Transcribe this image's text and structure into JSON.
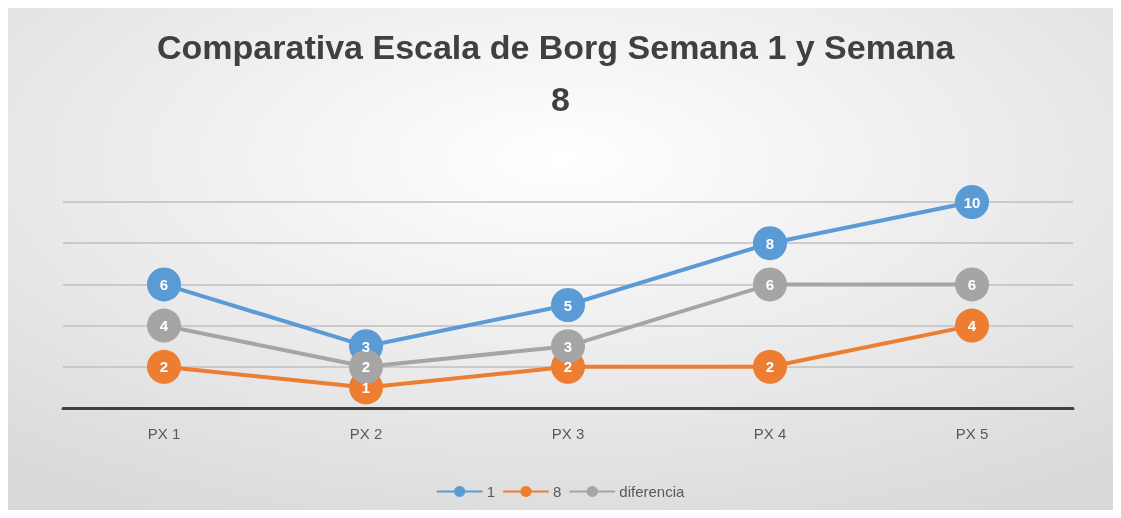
{
  "chart_data": {
    "type": "line",
    "title": "Comparativa Escala de Borg Semana 1 y Semana 8",
    "categories": [
      "PX 1",
      "PX 2",
      "PX 3",
      "PX 4",
      "PX 5"
    ],
    "series": [
      {
        "name": "1",
        "color": "#5b9bd5",
        "values": [
          6,
          3,
          5,
          8,
          10
        ]
      },
      {
        "name": "8",
        "color": "#ed7d31",
        "values": [
          2,
          1,
          2,
          2,
          4
        ]
      },
      {
        "name": "diferencia",
        "color": "#a5a5a5",
        "values": [
          4,
          2,
          3,
          6,
          6
        ]
      }
    ],
    "ylim": [
      0,
      10
    ],
    "yticks": [
      {
        "value": 0,
        "label": null
      },
      {
        "value": 2,
        "label": null
      },
      {
        "value": 4,
        "label": null
      },
      {
        "value": 6,
        "label": null
      },
      {
        "value": 8,
        "label": null
      },
      {
        "value": 10,
        "label": null
      }
    ],
    "tick_labels": "x",
    "grid": "y",
    "legend": "bottom",
    "marker": "circle",
    "line_style": "solid",
    "data_labels": true
  }
}
